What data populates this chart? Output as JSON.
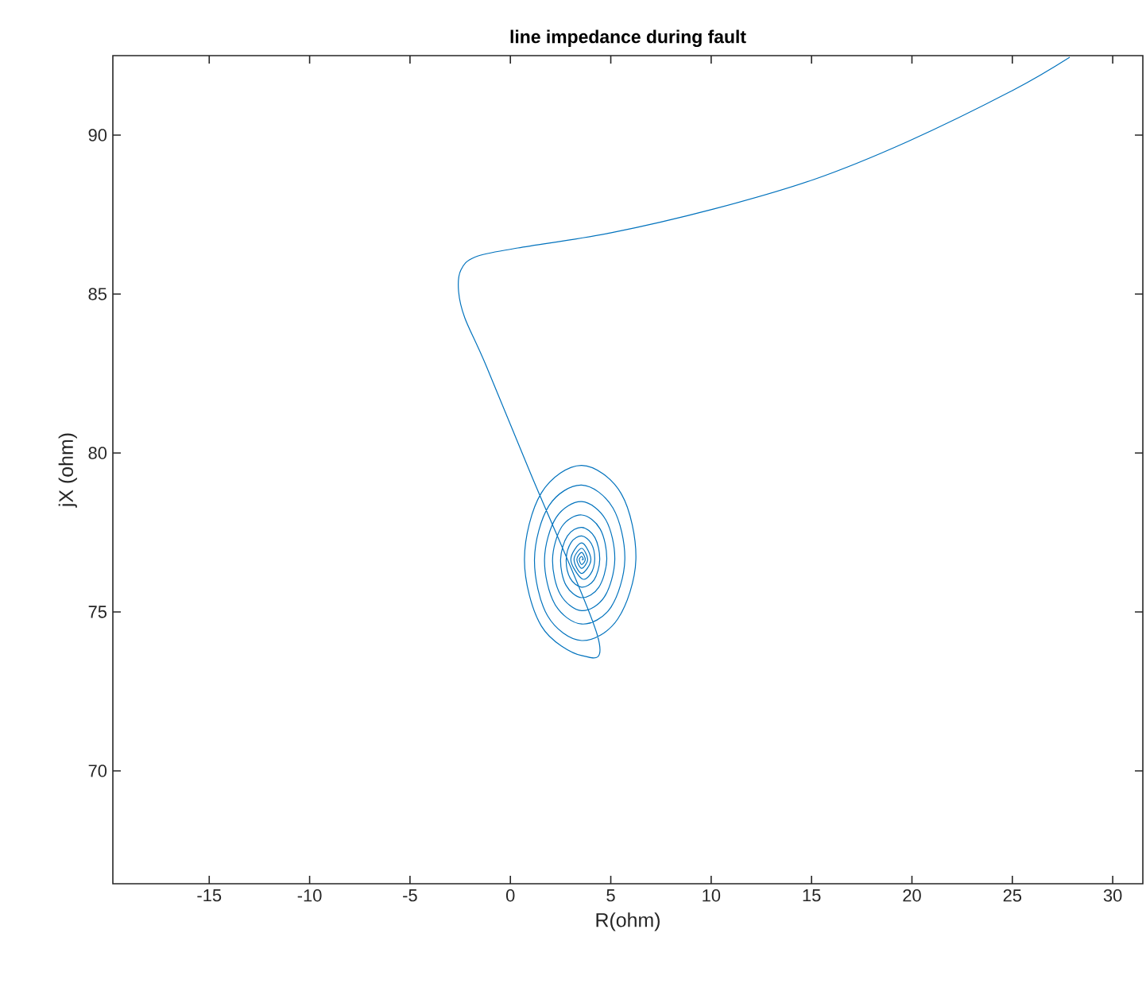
{
  "chart_data": {
    "type": "line",
    "title": "line impedance during fault",
    "xlabel": "R(ohm)",
    "ylabel": "jX (ohm)",
    "xlim": [
      -19.8,
      31.5
    ],
    "ylim": [
      66.45,
      92.5
    ],
    "xticks": [
      -15,
      -10,
      -5,
      0,
      5,
      10,
      15,
      20,
      25,
      30
    ],
    "yticks": [
      70,
      75,
      80,
      85,
      90
    ],
    "grid": false,
    "marker": "none",
    "line_style": "solid",
    "series": [
      {
        "color": "#0072bd",
        "x": [
          27.86,
          25.0,
          19.8,
          15.1,
          10.1,
          4.97,
          0.37,
          -1.74,
          -2.47,
          -2.58,
          -2.27,
          -1.21,
          1.01,
          4.34,
          3.55,
          1.54,
          0.7,
          1.54,
          3.55,
          5.53,
          6.25,
          5.35,
          3.55,
          1.85,
          1.2,
          1.92,
          3.55,
          5.11,
          5.7,
          5.0,
          3.55,
          2.21,
          1.7,
          2.28,
          3.55,
          4.75,
          5.2,
          4.68,
          3.55,
          2.49,
          2.1,
          2.56,
          3.55,
          4.47,
          4.8,
          4.4,
          3.55,
          2.77,
          2.5,
          2.84,
          3.55,
          4.21,
          4.45,
          4.17,
          3.55,
          2.98,
          2.78,
          3.03,
          3.55,
          4.03,
          4.2,
          3.99,
          3.55,
          3.01,
          3.55,
          4.01,
          3.55,
          3.17,
          3.55,
          3.85,
          3.55,
          3.31,
          3.55,
          3.73,
          3.55,
          3.43,
          3.55,
          3.63,
          3.55
        ],
        "values": [
          92.45,
          91.4,
          89.8,
          88.6,
          87.67,
          86.92,
          86.45,
          86.17,
          85.75,
          85.08,
          84.25,
          82.75,
          79.35,
          74.25,
          73.63,
          74.56,
          76.65,
          78.74,
          79.61,
          78.71,
          76.65,
          74.78,
          74.1,
          74.88,
          76.65,
          78.34,
          78.99,
          78.27,
          76.65,
          75.14,
          74.62,
          75.25,
          76.65,
          77.97,
          78.47,
          77.9,
          76.65,
          75.47,
          75.04,
          75.55,
          76.65,
          77.68,
          78.05,
          77.61,
          76.65,
          75.77,
          75.45,
          75.84,
          76.65,
          77.39,
          77.66,
          77.34,
          76.65,
          76.01,
          75.78,
          76.06,
          76.65,
          77.19,
          77.39,
          77.15,
          76.65,
          76.19,
          76.05,
          76.65,
          77.17,
          76.65,
          76.21,
          76.65,
          77.0,
          76.65,
          76.37,
          76.65,
          76.87,
          76.65,
          76.49,
          76.65,
          76.75,
          76.65,
          76.65
        ]
      }
    ]
  }
}
